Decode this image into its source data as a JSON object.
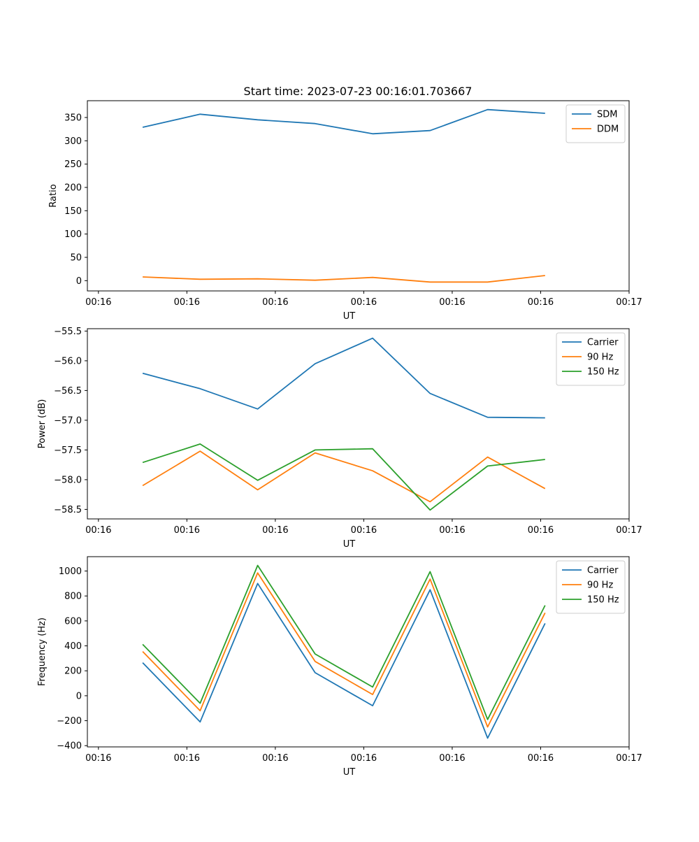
{
  "title": "Start time: 2023-07-23 00:16:01.703667",
  "colors": {
    "blue": "#1f77b4",
    "orange": "#ff7f0e",
    "green": "#2ca02c"
  },
  "chart_data": [
    {
      "type": "line",
      "ylabel": "Ratio",
      "xlabel": "UT",
      "legend_position": "top-right",
      "xlim": [
        -0.125,
        6.0
      ],
      "ylim": [
        -22,
        386
      ],
      "x": [
        0.5,
        1.15,
        1.8,
        2.45,
        3.1,
        3.75,
        4.4,
        5.05
      ],
      "x_ticks": [
        0,
        1,
        2,
        3,
        4,
        5,
        6
      ],
      "x_tick_labels": [
        "00:16",
        "00:16",
        "00:16",
        "00:16",
        "00:16",
        "00:16",
        "00:17"
      ],
      "y_ticks": [
        0,
        50,
        100,
        150,
        200,
        250,
        300,
        350
      ],
      "y_tick_labels": [
        "0",
        "50",
        "100",
        "150",
        "200",
        "250",
        "300",
        "350"
      ],
      "series": [
        {
          "name": "SDM",
          "color": "#1f77b4",
          "values": [
            329,
            357,
            345,
            337,
            315,
            322,
            367,
            359
          ]
        },
        {
          "name": "DDM",
          "color": "#ff7f0e",
          "values": [
            8,
            3,
            4,
            1,
            7,
            -3,
            -3,
            11
          ]
        }
      ]
    },
    {
      "type": "line",
      "ylabel": "Power (dB)",
      "xlabel": "UT",
      "legend_position": "top-right",
      "xlim": [
        -0.125,
        6.0
      ],
      "ylim": [
        -58.66,
        -55.46
      ],
      "x": [
        0.5,
        1.15,
        1.8,
        2.45,
        3.1,
        3.75,
        4.4,
        5.05
      ],
      "x_ticks": [
        0,
        1,
        2,
        3,
        4,
        5,
        6
      ],
      "x_tick_labels": [
        "00:16",
        "00:16",
        "00:16",
        "00:16",
        "00:16",
        "00:16",
        "00:17"
      ],
      "y_ticks": [
        -58.5,
        -58.0,
        -57.5,
        -57.0,
        -56.5,
        -56.0,
        -55.5
      ],
      "y_tick_labels": [
        "−58.5",
        "−58.0",
        "−57.5",
        "−57.0",
        "−56.5",
        "−56.0",
        "−55.5"
      ],
      "series": [
        {
          "name": "Carrier",
          "color": "#1f77b4",
          "values": [
            -56.21,
            -56.47,
            -56.81,
            -56.05,
            -55.62,
            -56.55,
            -56.95,
            -56.96
          ]
        },
        {
          "name": "90 Hz",
          "color": "#ff7f0e",
          "values": [
            -58.1,
            -57.52,
            -58.17,
            -57.55,
            -57.85,
            -58.37,
            -57.62,
            -58.15
          ]
        },
        {
          "name": "150 Hz",
          "color": "#2ca02c",
          "values": [
            -57.71,
            -57.4,
            -58.01,
            -57.5,
            -57.48,
            -58.51,
            -57.77,
            -57.66
          ]
        }
      ]
    },
    {
      "type": "line",
      "ylabel": "Frequency (Hz)",
      "xlabel": "UT",
      "legend_position": "top-right",
      "xlim": [
        -0.125,
        6.0
      ],
      "ylim": [
        -410,
        1115
      ],
      "x": [
        0.5,
        1.15,
        1.8,
        2.45,
        3.1,
        3.75,
        4.4,
        5.05
      ],
      "x_ticks": [
        0,
        1,
        2,
        3,
        4,
        5,
        6
      ],
      "x_tick_labels": [
        "00:16",
        "00:16",
        "00:16",
        "00:16",
        "00:16",
        "00:16",
        "00:17"
      ],
      "y_ticks": [
        -400,
        -200,
        0,
        200,
        400,
        600,
        800,
        1000
      ],
      "y_tick_labels": [
        "−400",
        "−200",
        "0",
        "200",
        "400",
        "600",
        "800",
        "1000"
      ],
      "series": [
        {
          "name": "Carrier",
          "color": "#1f77b4",
          "values": [
            265,
            -210,
            900,
            185,
            -80,
            850,
            -340,
            580
          ]
        },
        {
          "name": "90 Hz",
          "color": "#ff7f0e",
          "values": [
            355,
            -120,
            985,
            275,
            10,
            935,
            -250,
            665
          ]
        },
        {
          "name": "150 Hz",
          "color": "#2ca02c",
          "values": [
            412,
            -60,
            1045,
            335,
            70,
            995,
            -190,
            725
          ]
        }
      ]
    }
  ]
}
